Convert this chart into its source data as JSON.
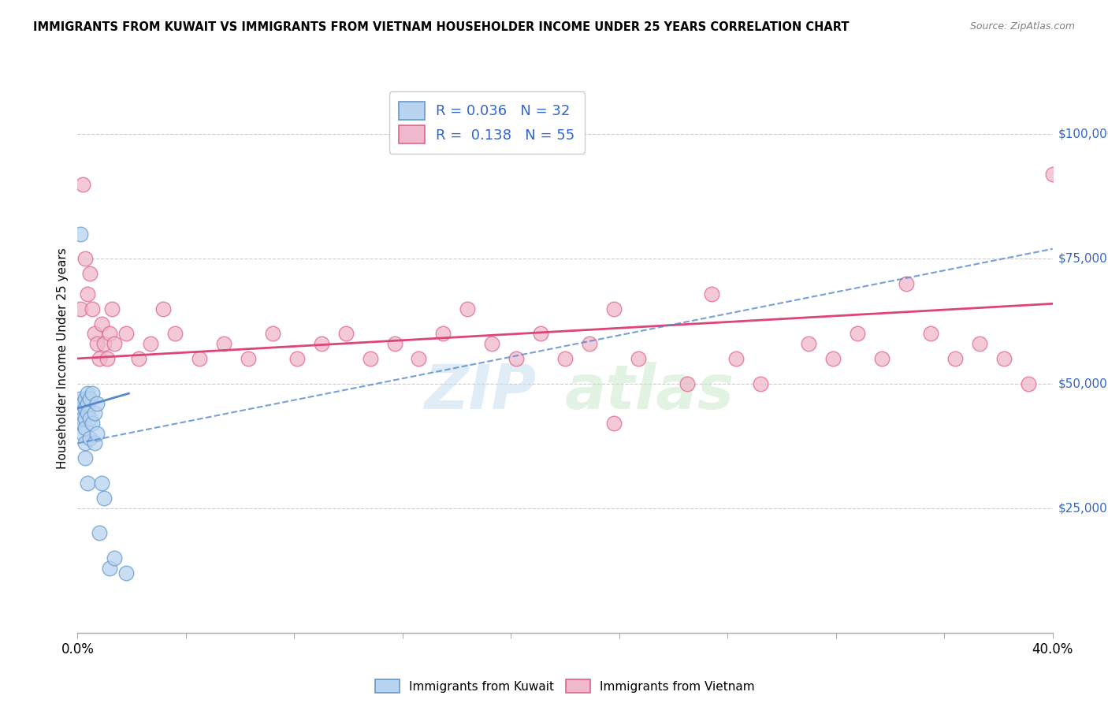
{
  "title": "IMMIGRANTS FROM KUWAIT VS IMMIGRANTS FROM VIETNAM HOUSEHOLDER INCOME UNDER 25 YEARS CORRELATION CHART",
  "source": "Source: ZipAtlas.com",
  "ylabel": "Householder Income Under 25 years",
  "xlim": [
    0.0,
    0.4
  ],
  "ylim": [
    0,
    110000
  ],
  "yticks": [
    0,
    25000,
    50000,
    75000,
    100000
  ],
  "ytick_labels": [
    "",
    "$25,000",
    "$50,000",
    "$75,000",
    "$100,000"
  ],
  "kuwait_R": 0.036,
  "kuwait_N": 32,
  "vietnam_R": 0.138,
  "vietnam_N": 55,
  "kuwait_color": "#b8d4f0",
  "vietnam_color": "#f0b8cc",
  "kuwait_edge_color": "#6699cc",
  "vietnam_edge_color": "#dd6688",
  "kuwait_line_color": "#5588cc",
  "vietnam_line_color": "#dd4477",
  "ytick_color": "#3366cc",
  "legend_text_color": "#3366cc",
  "kuwait_scatter_x": [
    0.001,
    0.001,
    0.001,
    0.002,
    0.002,
    0.002,
    0.002,
    0.003,
    0.003,
    0.003,
    0.003,
    0.003,
    0.003,
    0.004,
    0.004,
    0.004,
    0.004,
    0.005,
    0.005,
    0.005,
    0.006,
    0.006,
    0.007,
    0.007,
    0.008,
    0.008,
    0.009,
    0.01,
    0.011,
    0.013,
    0.015,
    0.02
  ],
  "kuwait_scatter_y": [
    80000,
    47000,
    44000,
    46000,
    43000,
    42000,
    40000,
    47000,
    45000,
    43000,
    41000,
    38000,
    35000,
    48000,
    46000,
    44000,
    30000,
    47000,
    43000,
    39000,
    48000,
    42000,
    44000,
    38000,
    46000,
    40000,
    20000,
    30000,
    27000,
    13000,
    15000,
    12000
  ],
  "vietnam_scatter_x": [
    0.001,
    0.002,
    0.003,
    0.004,
    0.005,
    0.006,
    0.007,
    0.008,
    0.009,
    0.01,
    0.011,
    0.012,
    0.013,
    0.014,
    0.015,
    0.02,
    0.025,
    0.03,
    0.035,
    0.04,
    0.05,
    0.06,
    0.07,
    0.08,
    0.09,
    0.1,
    0.11,
    0.12,
    0.13,
    0.14,
    0.15,
    0.16,
    0.17,
    0.18,
    0.19,
    0.2,
    0.21,
    0.22,
    0.23,
    0.25,
    0.26,
    0.27,
    0.28,
    0.3,
    0.31,
    0.32,
    0.33,
    0.34,
    0.35,
    0.36,
    0.37,
    0.38,
    0.39,
    0.4,
    0.22
  ],
  "vietnam_scatter_y": [
    65000,
    90000,
    75000,
    68000,
    72000,
    65000,
    60000,
    58000,
    55000,
    62000,
    58000,
    55000,
    60000,
    65000,
    58000,
    60000,
    55000,
    58000,
    65000,
    60000,
    55000,
    58000,
    55000,
    60000,
    55000,
    58000,
    60000,
    55000,
    58000,
    55000,
    60000,
    65000,
    58000,
    55000,
    60000,
    55000,
    58000,
    65000,
    55000,
    50000,
    68000,
    55000,
    50000,
    58000,
    55000,
    60000,
    55000,
    70000,
    60000,
    55000,
    58000,
    55000,
    50000,
    92000,
    42000
  ],
  "kuwait_line_x0": 0.0,
  "kuwait_line_x1": 0.021,
  "kuwait_line_y0": 45000,
  "kuwait_line_y1": 48000,
  "vietnam_line_x0": 0.0,
  "vietnam_line_x1": 0.4,
  "vietnam_line_y0": 55000,
  "vietnam_line_y1": 66000,
  "dashed_line_x0": 0.0,
  "dashed_line_x1": 0.4,
  "dashed_line_y0": 38000,
  "dashed_line_y1": 77000,
  "watermark_line1": "ZIP",
  "watermark_line2": "atlas",
  "background_color": "#ffffff",
  "grid_color": "#cccccc",
  "bottom_legend_label1": "Immigrants from Kuwait",
  "bottom_legend_label2": "Immigrants from Vietnam"
}
